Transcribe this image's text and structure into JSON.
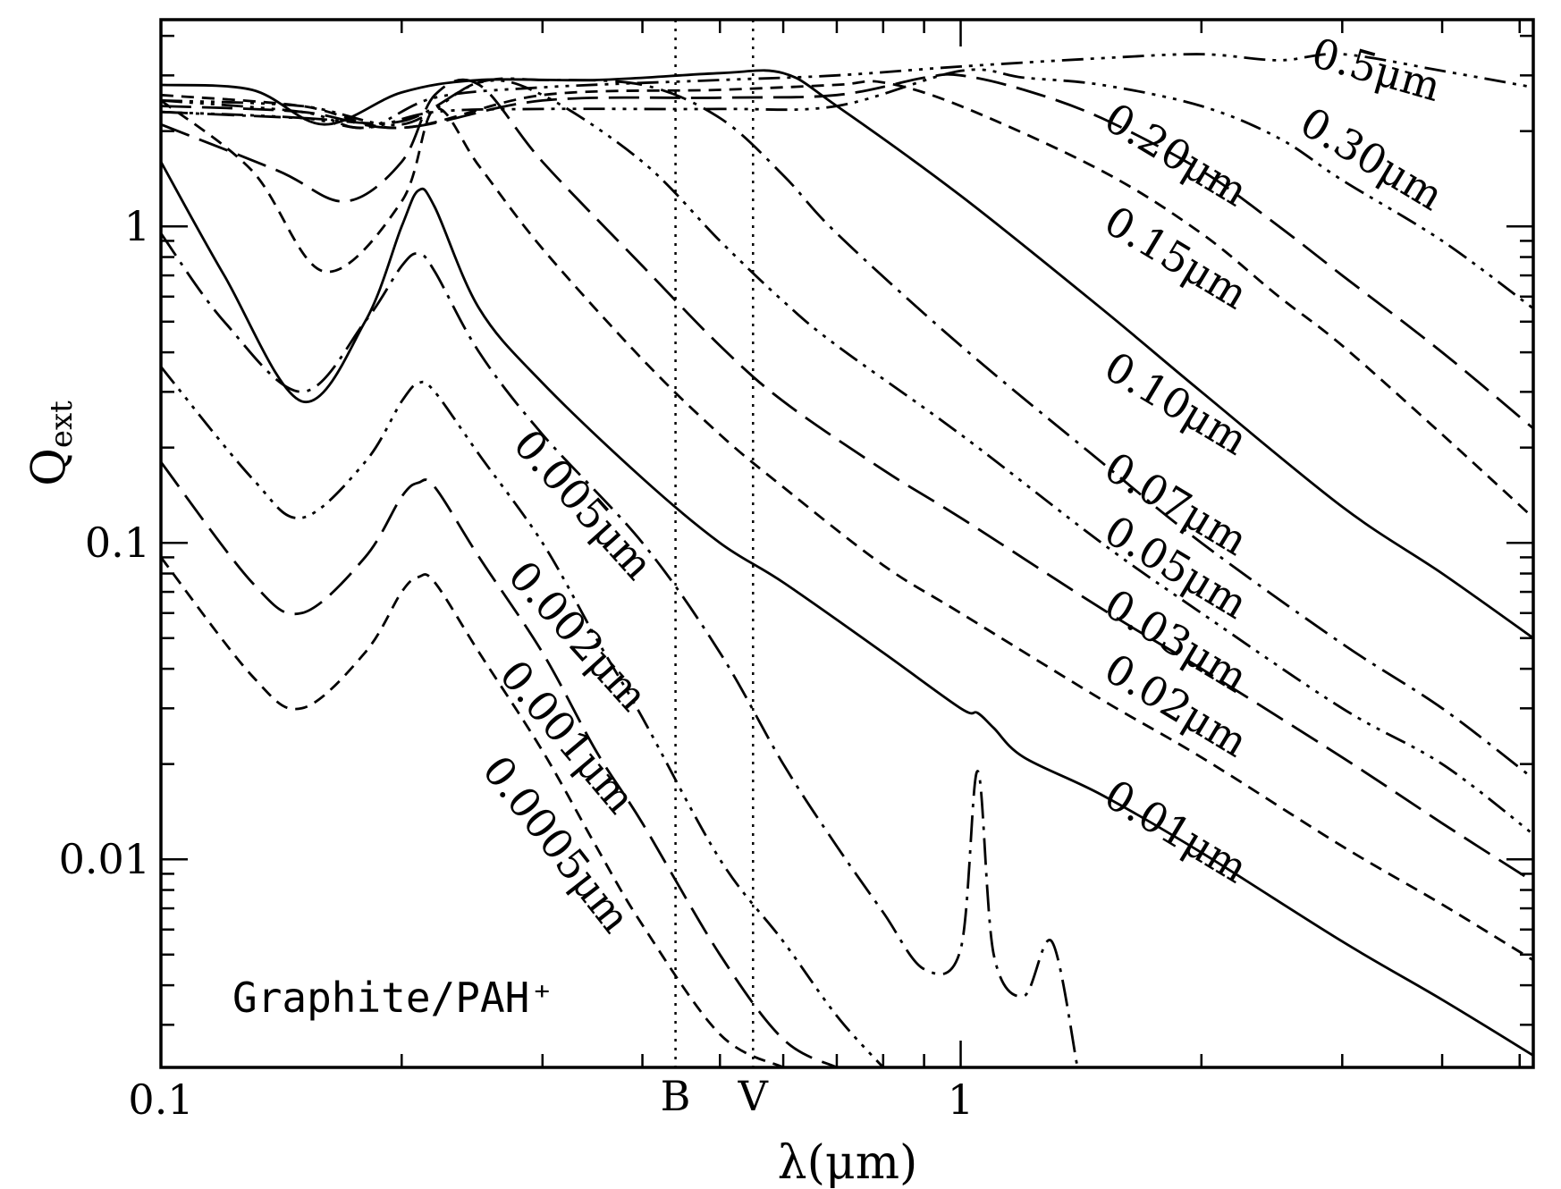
{
  "chart_data": {
    "type": "line",
    "xlabel": "λ(μm)",
    "ylabel_main": "Q",
    "ylabel_sub": "ext",
    "xscale": "log",
    "yscale": "log",
    "xlim": [
      0.1,
      5.2
    ],
    "ylim": [
      0.0022,
      4.5
    ],
    "xticks": [
      {
        "value": 0.1,
        "label": "0.1"
      },
      {
        "value": 1,
        "label": "1"
      }
    ],
    "yticks": [
      {
        "value": 0.01,
        "label": "0.01"
      },
      {
        "value": 0.1,
        "label": "0.1"
      },
      {
        "value": 1,
        "label": "1"
      }
    ],
    "annotation": "Graphite/PAH⁺",
    "bands": [
      {
        "label": "B",
        "x": 0.44
      },
      {
        "label": "V",
        "x": 0.55
      }
    ],
    "series": [
      {
        "name": "0.5μm",
        "style": "dashdot3",
        "x": [
          0.1,
          0.15,
          0.18,
          0.22,
          0.3,
          0.5,
          0.7,
          1.0,
          1.5,
          2.0,
          2.5,
          3.0,
          4.0,
          5.2
        ],
        "y": [
          2.5,
          2.3,
          2.05,
          2.55,
          2.75,
          2.9,
          3.0,
          3.2,
          3.4,
          3.5,
          3.35,
          3.5,
          3.1,
          2.75
        ]
      },
      {
        "name": "0.30μm",
        "style": "dashdot3",
        "x": [
          0.1,
          0.15,
          0.18,
          0.22,
          0.3,
          0.5,
          0.7,
          1.0,
          1.2,
          1.5,
          2.0,
          2.5,
          3.0,
          4.0,
          5.2
        ],
        "y": [
          2.3,
          2.2,
          2.05,
          2.3,
          2.35,
          2.35,
          2.4,
          3.1,
          2.95,
          2.8,
          2.4,
          1.9,
          1.4,
          0.9,
          0.55
        ]
      },
      {
        "name": "0.20μm",
        "style": "longdash",
        "x": [
          0.1,
          0.15,
          0.2,
          0.3,
          0.5,
          0.7,
          0.9,
          1.0,
          1.2,
          1.5,
          2.0,
          2.5,
          3.0,
          4.0,
          5.2
        ],
        "y": [
          2.4,
          2.3,
          2.05,
          2.5,
          2.55,
          2.6,
          2.95,
          3.0,
          2.7,
          2.2,
          1.5,
          1.0,
          0.7,
          0.4,
          0.23
        ]
      },
      {
        "name": "0.15μm",
        "style": "shortdash",
        "x": [
          0.1,
          0.15,
          0.2,
          0.3,
          0.5,
          0.7,
          0.8,
          1.0,
          1.5,
          2.0,
          2.5,
          3.0,
          4.0,
          5.2
        ],
        "y": [
          2.6,
          2.4,
          2.05,
          2.6,
          2.7,
          2.8,
          2.85,
          2.4,
          1.5,
          0.95,
          0.6,
          0.42,
          0.22,
          0.12
        ]
      },
      {
        "name": "0.10μm",
        "style": "solid",
        "x": [
          0.1,
          0.13,
          0.16,
          0.2,
          0.25,
          0.35,
          0.5,
          0.6,
          0.7,
          1.0,
          1.5,
          2.0,
          3.0,
          4.0,
          5.2
        ],
        "y": [
          2.8,
          2.7,
          2.1,
          2.65,
          2.9,
          2.9,
          3.05,
          3.05,
          2.4,
          1.25,
          0.55,
          0.3,
          0.13,
          0.08,
          0.05
        ]
      },
      {
        "name": "0.07μm",
        "style": "dashdot1",
        "x": [
          0.1,
          0.15,
          0.2,
          0.25,
          0.3,
          0.4,
          0.5,
          0.6,
          0.7,
          1.0,
          1.5,
          2.0,
          3.0,
          4.0,
          5.2
        ],
        "y": [
          2.3,
          2.2,
          2.15,
          2.85,
          2.9,
          2.8,
          2.2,
          1.45,
          0.95,
          0.42,
          0.18,
          0.1,
          0.048,
          0.03,
          0.018
        ]
      },
      {
        "name": "0.05μm",
        "style": "dashdot3",
        "x": [
          0.1,
          0.15,
          0.2,
          0.25,
          0.3,
          0.4,
          0.5,
          0.6,
          0.7,
          1.0,
          1.5,
          2.0,
          3.0,
          4.0,
          5.2
        ],
        "y": [
          2.5,
          2.4,
          2.1,
          2.85,
          2.6,
          1.6,
          0.9,
          0.58,
          0.42,
          0.22,
          0.1,
          0.06,
          0.03,
          0.02,
          0.012
        ]
      },
      {
        "name": "0.03μm",
        "style": "longdash",
        "x": [
          0.1,
          0.14,
          0.17,
          0.2,
          0.22,
          0.25,
          0.3,
          0.4,
          0.5,
          0.6,
          0.8,
          1.0,
          1.5,
          2.0,
          3.0,
          4.0,
          5.2
        ],
        "y": [
          2.1,
          1.5,
          1.2,
          1.6,
          2.6,
          2.8,
          1.6,
          0.75,
          0.42,
          0.28,
          0.17,
          0.12,
          0.062,
          0.04,
          0.021,
          0.013,
          0.0085
        ]
      },
      {
        "name": "0.02μm",
        "style": "shortdash",
        "x": [
          0.1,
          0.13,
          0.16,
          0.2,
          0.22,
          0.25,
          0.3,
          0.4,
          0.5,
          0.6,
          0.8,
          1.0,
          1.5,
          2.0,
          3.0,
          4.0,
          5.2
        ],
        "y": [
          2.5,
          1.5,
          0.72,
          1.2,
          2.35,
          1.55,
          0.85,
          0.38,
          0.22,
          0.15,
          0.085,
          0.06,
          0.032,
          0.021,
          0.011,
          0.0072,
          0.0048
        ]
      },
      {
        "name": "0.01μm",
        "style": "solid",
        "x": [
          0.1,
          0.12,
          0.15,
          0.18,
          0.2,
          0.21,
          0.22,
          0.25,
          0.3,
          0.4,
          0.5,
          0.6,
          0.8,
          1.0,
          1.05,
          1.1,
          1.2,
          1.5,
          2.0,
          3.0,
          4.0,
          5.2
        ],
        "y": [
          1.6,
          0.7,
          0.28,
          0.5,
          1.0,
          1.3,
          1.15,
          0.55,
          0.32,
          0.16,
          0.1,
          0.075,
          0.045,
          0.03,
          0.029,
          0.026,
          0.021,
          0.016,
          0.0105,
          0.0055,
          0.0036,
          0.0024
        ]
      },
      {
        "name": "0.005μm",
        "style": "dashdot1",
        "x": [
          0.1,
          0.12,
          0.15,
          0.18,
          0.2,
          0.21,
          0.22,
          0.25,
          0.3,
          0.4,
          0.5,
          0.6,
          0.7,
          0.8,
          0.9,
          1.0,
          1.05,
          1.1,
          1.2,
          1.3,
          1.4
        ],
        "y": [
          0.95,
          0.5,
          0.3,
          0.5,
          0.75,
          0.82,
          0.72,
          0.4,
          0.22,
          0.1,
          0.045,
          0.02,
          0.011,
          0.0068,
          0.0045,
          0.0052,
          0.019,
          0.005,
          0.0037,
          0.0055,
          0.0022
        ]
      },
      {
        "name": "0.002μm",
        "style": "dashdot3",
        "x": [
          0.1,
          0.13,
          0.15,
          0.18,
          0.2,
          0.21,
          0.22,
          0.25,
          0.3,
          0.35,
          0.4,
          0.5,
          0.6,
          0.7,
          0.8
        ],
        "y": [
          0.36,
          0.16,
          0.12,
          0.18,
          0.28,
          0.32,
          0.3,
          0.19,
          0.1,
          0.05,
          0.028,
          0.01,
          0.0055,
          0.0032,
          0.0022
        ]
      },
      {
        "name": "0.001μm",
        "style": "longdash",
        "x": [
          0.1,
          0.13,
          0.15,
          0.18,
          0.2,
          0.21,
          0.22,
          0.25,
          0.3,
          0.35,
          0.4,
          0.5,
          0.6,
          0.7
        ],
        "y": [
          0.18,
          0.075,
          0.06,
          0.09,
          0.14,
          0.155,
          0.15,
          0.09,
          0.045,
          0.022,
          0.013,
          0.005,
          0.0027,
          0.0022
        ]
      },
      {
        "name": "0.0005μm",
        "style": "shortdash",
        "x": [
          0.1,
          0.13,
          0.15,
          0.18,
          0.2,
          0.21,
          0.22,
          0.25,
          0.3,
          0.35,
          0.4,
          0.5,
          0.6
        ],
        "y": [
          0.09,
          0.038,
          0.03,
          0.045,
          0.07,
          0.078,
          0.075,
          0.045,
          0.022,
          0.011,
          0.0062,
          0.0028,
          0.0022
        ]
      }
    ],
    "labels": [
      {
        "text": "0.5μm",
        "x": 3.3,
        "y": 3.05,
        "angle": 16
      },
      {
        "text": "0.30μm",
        "x": 3.25,
        "y": 1.6,
        "angle": 31
      },
      {
        "text": "0.20μm",
        "x": 1.85,
        "y": 1.65,
        "angle": 31
      },
      {
        "text": "0.15μm",
        "x": 1.85,
        "y": 0.78,
        "angle": 31
      },
      {
        "text": "0.10μm",
        "x": 1.85,
        "y": 0.27,
        "angle": 31
      },
      {
        "text": "0.07μm",
        "x": 1.85,
        "y": 0.13,
        "angle": 31
      },
      {
        "text": "0.05μm",
        "x": 1.85,
        "y": 0.082,
        "angle": 31
      },
      {
        "text": "0.03μm",
        "x": 1.85,
        "y": 0.048,
        "angle": 31
      },
      {
        "text": "0.02μm",
        "x": 1.85,
        "y": 0.03,
        "angle": 31
      },
      {
        "text": "0.01μm",
        "x": 1.85,
        "y": 0.012,
        "angle": 31
      },
      {
        "text": "0.005μm",
        "x": 0.335,
        "y": 0.13,
        "angle": 48
      },
      {
        "text": "0.002μm",
        "x": 0.33,
        "y": 0.05,
        "angle": 48
      },
      {
        "text": "0.001μm",
        "x": 0.32,
        "y": 0.024,
        "angle": 50
      },
      {
        "text": "0.0005μm",
        "x": 0.31,
        "y": 0.011,
        "angle": 52
      }
    ]
  }
}
